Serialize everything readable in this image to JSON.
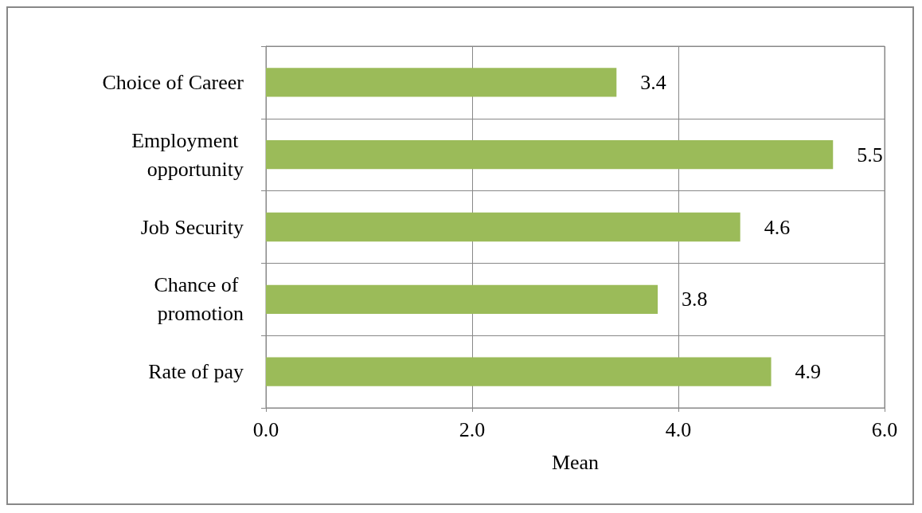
{
  "chart_data": {
    "type": "bar",
    "orientation": "horizontal",
    "categories": [
      "Choice of Career",
      "Employment opportunity",
      "Job Security",
      "Chance of promotion",
      "Rate of pay"
    ],
    "values": [
      3.4,
      5.5,
      4.6,
      3.8,
      4.9
    ],
    "color": "#9bbb59",
    "data_labels": true,
    "xlabel": "Mean",
    "xlim": [
      0,
      6
    ],
    "xticks": [
      {
        "value": 0,
        "label": "0.0"
      },
      {
        "value": 2,
        "label": "2.0"
      },
      {
        "value": 4,
        "label": "4.0"
      },
      {
        "value": 6,
        "label": "6.0"
      }
    ],
    "grid": true
  }
}
